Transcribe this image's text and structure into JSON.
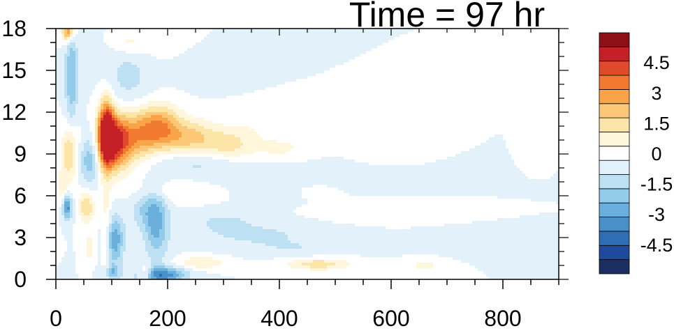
{
  "chart_data": {
    "type": "heatmap",
    "title": "Time = 97 hr",
    "xlabel": "",
    "ylabel": "",
    "xlim": [
      0,
      900
    ],
    "ylim": [
      0,
      18
    ],
    "x_ticks": [
      "0",
      "200",
      "400",
      "600",
      "800"
    ],
    "x_tick_values": [
      0,
      200,
      400,
      600,
      800
    ],
    "y_ticks": [
      "0",
      "3",
      "6",
      "9",
      "12",
      "15",
      "18"
    ],
    "y_tick_values": [
      0,
      3,
      6,
      9,
      12,
      15,
      18
    ],
    "colorbar": {
      "levels": [
        -5.25,
        -4.5,
        -3.75,
        -3,
        -2.25,
        -1.5,
        -0.75,
        0,
        0.75,
        1.5,
        2.25,
        3,
        3.75,
        4.5,
        5.25
      ],
      "labels": [
        "-4.5",
        "-3",
        "-1.5",
        "0",
        "1.5",
        "3",
        "4.5"
      ],
      "label_values": [
        -4.5,
        -3,
        -1.5,
        0,
        1.5,
        3,
        4.5
      ],
      "colors": [
        "#1b2f63",
        "#1f4a9c",
        "#2f6db4",
        "#4a90c8",
        "#6aaedb",
        "#93cbea",
        "#bde0f3",
        "#e3f2fa",
        "#ffffff",
        "#fff6dc",
        "#fde5a8",
        "#fcc877",
        "#f9a449",
        "#f27a30",
        "#e04a2a",
        "#c42026",
        "#8c1016"
      ]
    },
    "features": [
      {
        "x": 90,
        "y": 10.5,
        "sx": 10,
        "sy": 1.6,
        "v": 6.0
      },
      {
        "x": 105,
        "y": 9.8,
        "sx": 18,
        "sy": 1.4,
        "v": 4.5
      },
      {
        "x": 140,
        "y": 10.2,
        "sx": 28,
        "sy": 1.3,
        "v": 2.8
      },
      {
        "x": 185,
        "y": 11.0,
        "sx": 26,
        "sy": 1.1,
        "v": 3.2
      },
      {
        "x": 240,
        "y": 10.2,
        "sx": 35,
        "sy": 0.9,
        "v": 2.4
      },
      {
        "x": 310,
        "y": 9.6,
        "sx": 30,
        "sy": 0.8,
        "v": 1.6
      },
      {
        "x": 400,
        "y": 9.4,
        "sx": 40,
        "sy": 0.7,
        "v": 0.9
      },
      {
        "x": 580,
        "y": 9.4,
        "sx": 35,
        "sy": 0.6,
        "v": 0.6
      },
      {
        "x": 345,
        "y": 10.8,
        "sx": 30,
        "sy": 0.6,
        "v": 0.5
      },
      {
        "x": 25,
        "y": 9.2,
        "sx": 10,
        "sy": 1.5,
        "v": 2.4
      },
      {
        "x": 12,
        "y": 6.5,
        "sx": 6,
        "sy": 1.0,
        "v": 1.2
      },
      {
        "x": 55,
        "y": 5.2,
        "sx": 10,
        "sy": 0.8,
        "v": 2.2
      },
      {
        "x": 20,
        "y": 5.2,
        "sx": 6,
        "sy": 0.6,
        "v": -3.5
      },
      {
        "x": 28,
        "y": 14.5,
        "sx": 8,
        "sy": 2.8,
        "v": -2.2
      },
      {
        "x": 22,
        "y": 17.8,
        "sx": 8,
        "sy": 0.5,
        "v": 4.0
      },
      {
        "x": 60,
        "y": 8.5,
        "sx": 12,
        "sy": 1.2,
        "v": -2.0
      },
      {
        "x": 130,
        "y": 14.5,
        "sx": 30,
        "sy": 1.6,
        "v": -1.0
      },
      {
        "x": 200,
        "y": 17.0,
        "sx": 30,
        "sy": 0.8,
        "v": 0.8
      },
      {
        "x": 130,
        "y": 17.0,
        "sx": 20,
        "sy": 0.6,
        "v": 1.0
      },
      {
        "x": 250,
        "y": 8.4,
        "sx": 60,
        "sy": 0.6,
        "v": -1.0
      },
      {
        "x": 420,
        "y": 7.6,
        "sx": 90,
        "sy": 0.6,
        "v": -0.6
      },
      {
        "x": 200,
        "y": 6.3,
        "sx": 50,
        "sy": 0.5,
        "v": 0.8
      },
      {
        "x": 160,
        "y": 5.0,
        "sx": 20,
        "sy": 1.0,
        "v": -1.3
      },
      {
        "x": 180,
        "y": 3.8,
        "sx": 15,
        "sy": 1.8,
        "v": -2.3
      },
      {
        "x": 105,
        "y": 2.8,
        "sx": 12,
        "sy": 1.2,
        "v": -2.8
      },
      {
        "x": 90,
        "y": 3.5,
        "sx": 6,
        "sy": 2.8,
        "v": 1.2
      },
      {
        "x": 60,
        "y": 2.2,
        "sx": 6,
        "sy": 0.6,
        "v": 1.6
      },
      {
        "x": 190,
        "y": 0.3,
        "sx": 30,
        "sy": 0.4,
        "v": -3.5
      },
      {
        "x": 160,
        "y": 0.4,
        "sx": 8,
        "sy": 0.4,
        "v": 2.0
      },
      {
        "x": 100,
        "y": 0.5,
        "sx": 10,
        "sy": 0.4,
        "v": -2.0
      },
      {
        "x": 260,
        "y": 1.2,
        "sx": 30,
        "sy": 0.3,
        "v": 1.5
      },
      {
        "x": 360,
        "y": 3.2,
        "sx": 80,
        "sy": 0.6,
        "v": -0.9
      },
      {
        "x": 300,
        "y": 4.2,
        "sx": 40,
        "sy": 0.5,
        "v": -0.8
      },
      {
        "x": 470,
        "y": 1.1,
        "sx": 40,
        "sy": 0.3,
        "v": 2.0
      },
      {
        "x": 560,
        "y": 4.8,
        "sx": 55,
        "sy": 0.4,
        "v": 0.6
      },
      {
        "x": 430,
        "y": 2.2,
        "sx": 60,
        "sy": 0.4,
        "v": -0.6
      },
      {
        "x": 660,
        "y": 1.0,
        "sx": 20,
        "sy": 0.3,
        "v": 1.0
      },
      {
        "x": 740,
        "y": 2.6,
        "sx": 70,
        "sy": 0.4,
        "v": -0.5
      },
      {
        "x": 860,
        "y": 9.6,
        "sx": 10,
        "sy": 0.5,
        "v": 0.6
      },
      {
        "x": 680,
        "y": 10.5,
        "sx": 10,
        "sy": 0.4,
        "v": 0.5
      },
      {
        "x": 240,
        "y": 15.5,
        "sx": 30,
        "sy": 1.0,
        "v": -0.5
      },
      {
        "x": 380,
        "y": 6.0,
        "sx": 30,
        "sy": 0.5,
        "v": -0.6
      },
      {
        "x": 470,
        "y": 6.3,
        "sx": 20,
        "sy": 0.3,
        "v": 0.5
      }
    ]
  }
}
